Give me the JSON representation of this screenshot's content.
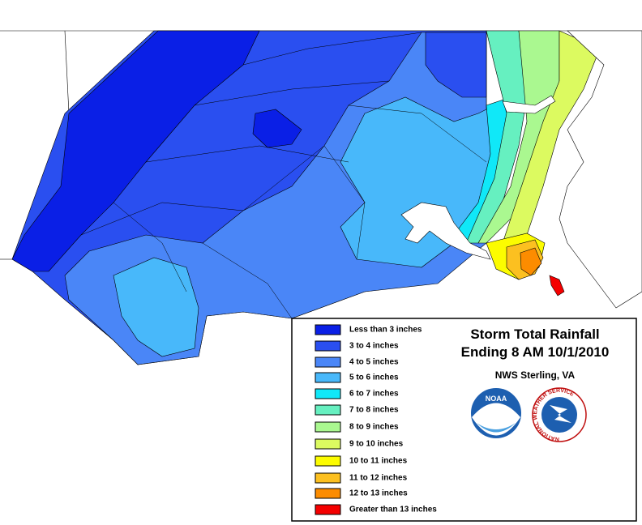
{
  "title": {
    "line1": "Storm Total Rainfall",
    "line2": "Ending 8 AM 10/1/2010",
    "subtitle": "NWS Sterling, VA"
  },
  "logos": {
    "noaa": "NOAA",
    "nws": "NATIONAL WEATHER SERVICE"
  },
  "legend": {
    "items": [
      {
        "label": "Less than 3 inches",
        "color": "#0a1fe6"
      },
      {
        "label": "3 to 4 inches",
        "color": "#2a4ff0"
      },
      {
        "label": "4 to 5 inches",
        "color": "#4a86f7"
      },
      {
        "label": "5 to 6 inches",
        "color": "#48b8fa"
      },
      {
        "label": "6 to 7 inches",
        "color": "#10e8f8"
      },
      {
        "label": "7 to 8 inches",
        "color": "#66f0c0"
      },
      {
        "label": "8 to 9 inches",
        "color": "#aaf890"
      },
      {
        "label": "9 to 10 inches",
        "color": "#dcfa60"
      },
      {
        "label": "10 to 11 inches",
        "color": "#fcfc00"
      },
      {
        "label": "11 to 12 inches",
        "color": "#fcc020"
      },
      {
        "label": "12 to 13 inches",
        "color": "#fc8c00"
      },
      {
        "label": "Greater than 13 inches",
        "color": "#f40000"
      }
    ]
  }
}
